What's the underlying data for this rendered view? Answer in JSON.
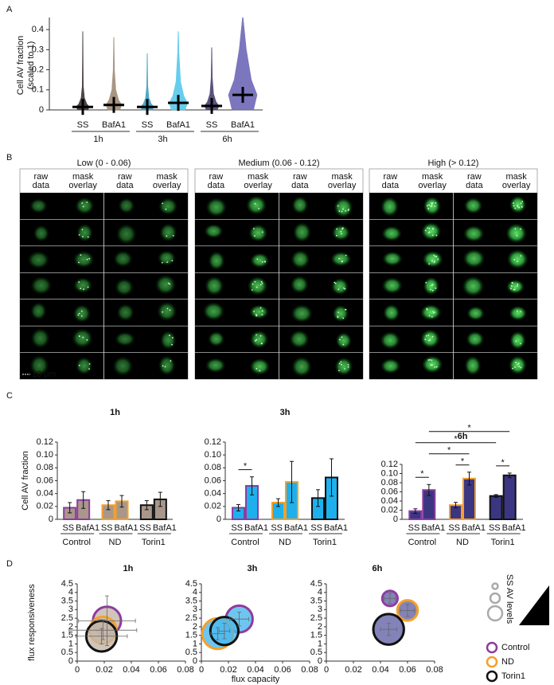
{
  "panels": [
    "A",
    "B",
    "C",
    "D"
  ],
  "micrographs": {
    "groups": [
      {
        "title": "Low (0 - 0.06)",
        "columns": [
          [
            "raw",
            "data"
          ],
          [
            "mask",
            "overlay"
          ],
          [
            "raw",
            "data"
          ],
          [
            "mask",
            "overlay"
          ]
        ]
      },
      {
        "title": "Medium (0.06 - 0.12)",
        "columns": [
          [
            "raw",
            "data"
          ],
          [
            "mask",
            "overlay"
          ],
          [
            "raw",
            "data"
          ],
          [
            "mask",
            "overlay"
          ]
        ]
      },
      {
        "title": "High (> 0.12)",
        "columns": [
          [
            "raw",
            "data"
          ],
          [
            "mask",
            "overlay"
          ],
          [
            "raw",
            "data"
          ],
          [
            "mask",
            "overlay"
          ]
        ]
      }
    ],
    "scale_bar": "10 μm"
  },
  "chart_data": [
    {
      "type": "violin",
      "ylabel": [
        "Cell AV fraction",
        "(scaled to 1)"
      ],
      "categories": [
        "SS",
        "BafA1",
        "SS",
        "BafA1",
        "SS",
        "BafA1"
      ],
      "groups": [
        "1h",
        "3h",
        "6h"
      ],
      "group_colors": [
        "#9c8672",
        "#2ab4e4",
        "#7c3f96"
      ],
      "colors": [
        "#3a3030",
        "#a08a76",
        "#3a9fc0",
        "#58c8ec",
        "#4a4070",
        "#6e68b8"
      ],
      "means": [
        0.015,
        0.025,
        0.015,
        0.035,
        0.02,
        0.075
      ],
      "maxima": [
        0.39,
        0.36,
        0.28,
        0.39,
        0.31,
        0.46
      ],
      "ylim": [
        0,
        0.46
      ],
      "yticks": [
        0,
        0.1,
        0.2,
        0.3,
        0.4
      ]
    },
    {
      "type": "bar",
      "title": "1h",
      "title_color": "#a8968a",
      "ylabel": "Cell AV fraction",
      "categories": [
        "SS",
        "BafA1",
        "SS",
        "BafA1",
        "SS",
        "BafA1"
      ],
      "groups": [
        "Control",
        "ND",
        "Torin1"
      ],
      "values": [
        0.018,
        0.03,
        0.022,
        0.028,
        0.022,
        0.031
      ],
      "errors": [
        0.008,
        0.013,
        0.007,
        0.009,
        0.007,
        0.011
      ],
      "color": "#a8978a",
      "edge_colors": [
        "#8e3c9e",
        "#f5a02a",
        "#111111"
      ],
      "ylim": [
        0,
        0.12
      ],
      "yticks": [
        0,
        0.02,
        0.04,
        0.06,
        0.08,
        {
          "value": 0.1,
          "label": "0.10"
        },
        0.12
      ],
      "significance": []
    },
    {
      "type": "bar",
      "title": "3h",
      "title_color": "#29b6e6",
      "categories": [
        "SS",
        "BafA1",
        "SS",
        "BafA1",
        "SS",
        "BafA1"
      ],
      "groups": [
        "Control",
        "ND",
        "Torin1"
      ],
      "values": [
        0.018,
        0.052,
        0.026,
        0.058,
        0.033,
        0.065
      ],
      "errors": [
        0.005,
        0.014,
        0.006,
        0.032,
        0.013,
        0.029
      ],
      "color": "#1db0ec",
      "edge_colors": [
        "#8e3c9e",
        "#f5a02a",
        "#111111"
      ],
      "ylim": [
        0,
        0.12
      ],
      "yticks": [
        0,
        0.02,
        0.04,
        0.06,
        0.08,
        {
          "value": 0.1,
          "label": "0.10"
        },
        0.12
      ],
      "significance": [
        {
          "pair": [
            0,
            1
          ],
          "label": "*"
        }
      ]
    },
    {
      "type": "bar",
      "title": "6h",
      "title_color": "#6a3e9a",
      "categories": [
        "SS",
        "BafA1",
        "SS",
        "BafA1",
        "SS",
        "BafA1"
      ],
      "groups": [
        "Control",
        "ND",
        "Torin1"
      ],
      "values": [
        0.018,
        0.064,
        0.031,
        0.089,
        0.051,
        0.096
      ],
      "errors": [
        0.005,
        0.012,
        0.006,
        0.014,
        0.003,
        0.005
      ],
      "color": "#3b3682",
      "edge_colors": [
        "#8e3c9e",
        "#f5a02a",
        "#111111"
      ],
      "ylim": [
        0,
        0.12
      ],
      "yticks": [
        0,
        0.02,
        0.04,
        0.06,
        0.08,
        {
          "value": 0.1,
          "label": "0.10"
        },
        0.12
      ],
      "significance": [
        {
          "pair": [
            0,
            1
          ],
          "label": "*"
        },
        {
          "pair": [
            2,
            3
          ],
          "label": "*"
        },
        {
          "pair": [
            4,
            5
          ],
          "label": "*"
        },
        {
          "pair": [
            1,
            3
          ],
          "label": "*"
        },
        {
          "pair": [
            0,
            4
          ],
          "label": "*"
        },
        {
          "pair": [
            1,
            5
          ],
          "label": "*"
        }
      ]
    },
    {
      "type": "bubble",
      "title": "1h",
      "title_color": "#a8968a",
      "ylabel": "flux responsiveness",
      "fill": "#c4b6a8",
      "xlim": [
        0,
        0.08
      ],
      "xticks": [
        0,
        0.02,
        0.04,
        0.06,
        0.08
      ],
      "ylim": [
        0,
        4.5
      ],
      "yticks": [
        0,
        0.5,
        1,
        1.5,
        2,
        2.5,
        3,
        3.5,
        4,
        4.5
      ],
      "series": [
        {
          "color": "#8e3c9e",
          "x": [
            0.022
          ],
          "y": [
            2.35
          ],
          "size": [
            0.022
          ],
          "xerr": [
            0.021
          ],
          "yerr": [
            1.45
          ]
        },
        {
          "color": "#f5a02a",
          "x": [
            0.019
          ],
          "y": [
            1.8
          ],
          "size": [
            0.021
          ],
          "xerr": [
            0.025
          ],
          "yerr": [
            0.55
          ]
        },
        {
          "color": "#111111",
          "x": [
            0.018
          ],
          "y": [
            1.45
          ],
          "size": [
            0.024
          ],
          "xerr": [
            0.019
          ],
          "yerr": [
            0.45
          ]
        }
      ]
    },
    {
      "type": "bubble",
      "title": "3h",
      "title_color": "#29b6e6",
      "xlabel": "flux capacity",
      "fill": "#4ab8ec",
      "xlim": [
        0,
        0.08
      ],
      "xticks": [
        0,
        0.02,
        0.04,
        0.06,
        0.08
      ],
      "ylim": [
        0,
        4.5
      ],
      "yticks": [
        0,
        0.5,
        1,
        1.5,
        2,
        2.5,
        3,
        3.5,
        4,
        4.5
      ],
      "series": [
        {
          "color": "#8e3c9e",
          "x": [
            0.028
          ],
          "y": [
            2.45
          ],
          "size": [
            0.021
          ],
          "xerr": [
            0.007
          ],
          "yerr": [
            0.4
          ]
        },
        {
          "color": "#f5a02a",
          "x": [
            0.012
          ],
          "y": [
            1.6
          ],
          "size": [
            0.024
          ],
          "xerr": [
            0.005
          ],
          "yerr": [
            0.35
          ]
        },
        {
          "color": "#111111",
          "x": [
            0.017
          ],
          "y": [
            1.75
          ],
          "size": [
            0.022
          ],
          "xerr": [
            0.004
          ],
          "yerr": [
            0.45
          ]
        }
      ]
    },
    {
      "type": "bubble",
      "title": "6h",
      "title_color": "#6a3e9a",
      "fill": "#6464a8",
      "size_label": "SS AV levels",
      "xlim": [
        0,
        0.08
      ],
      "xticks": [
        0,
        0.02,
        0.04,
        0.06,
        0.08
      ],
      "ylim": [
        0,
        4.5
      ],
      "yticks": [
        0,
        0.5,
        1,
        1.5,
        2,
        2.5,
        3,
        3.5,
        4,
        4.5
      ],
      "series": [
        {
          "name": "Control",
          "color": "#8e3c9e",
          "x": [
            0.047
          ],
          "y": [
            3.65
          ],
          "size": [
            0.012
          ],
          "xerr": [
            0.004
          ],
          "yerr": [
            0.3
          ]
        },
        {
          "name": "ND",
          "color": "#f5a02a",
          "x": [
            0.06
          ],
          "y": [
            2.95
          ],
          "size": [
            0.016
          ],
          "xerr": [
            0.005
          ],
          "yerr": [
            0.35
          ]
        },
        {
          "name": "Torin1",
          "color": "#111111",
          "x": [
            0.046
          ],
          "y": [
            1.85
          ],
          "size": [
            0.024
          ],
          "xerr": [
            0.006
          ],
          "yerr": [
            0.35
          ]
        }
      ]
    }
  ]
}
